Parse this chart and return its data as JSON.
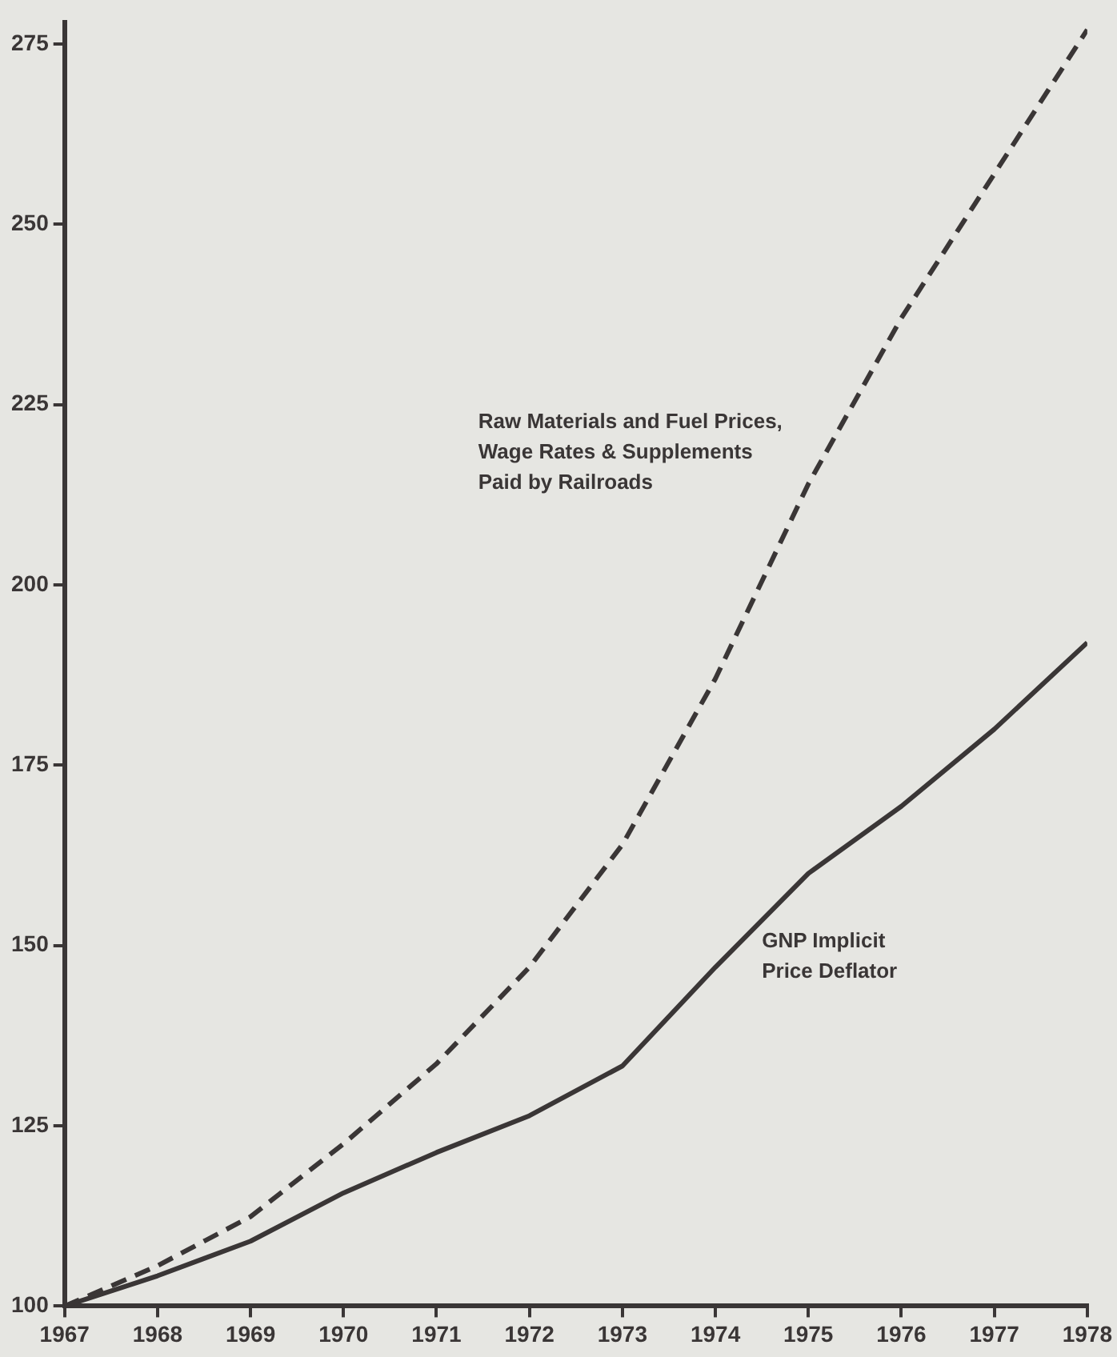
{
  "chart_data": {
    "type": "line",
    "x": [
      1967,
      1968,
      1969,
      1970,
      1971,
      1972,
      1973,
      1974,
      1975,
      1976,
      1977,
      1978
    ],
    "xlim": [
      1967,
      1978
    ],
    "xticks": [
      1967,
      1968,
      1969,
      1970,
      1971,
      1972,
      1973,
      1974,
      1975,
      1976,
      1977,
      1978
    ],
    "ylim": [
      100,
      278
    ],
    "yticks": [
      100,
      125,
      150,
      175,
      200,
      225,
      250,
      275
    ],
    "grid": false,
    "legend": false,
    "marker": "none",
    "series": [
      {
        "name": "Raw Materials and Fuel Prices,\nWage Rates & Supplements\nPaid by Railroads",
        "color": "#3a3636",
        "line_style": "dashed",
        "values": [
          100,
          105.6,
          112.4,
          122.5,
          133.6,
          147,
          164,
          187,
          214,
          237,
          257,
          277
        ]
      },
      {
        "name": "GNP Implicit\nPrice Deflator",
        "color": "#3a3636",
        "line_style": "solid",
        "values": [
          100,
          104.2,
          109,
          115.7,
          121.3,
          126.4,
          133.3,
          147,
          160,
          169.3,
          180,
          192
        ]
      }
    ]
  }
}
